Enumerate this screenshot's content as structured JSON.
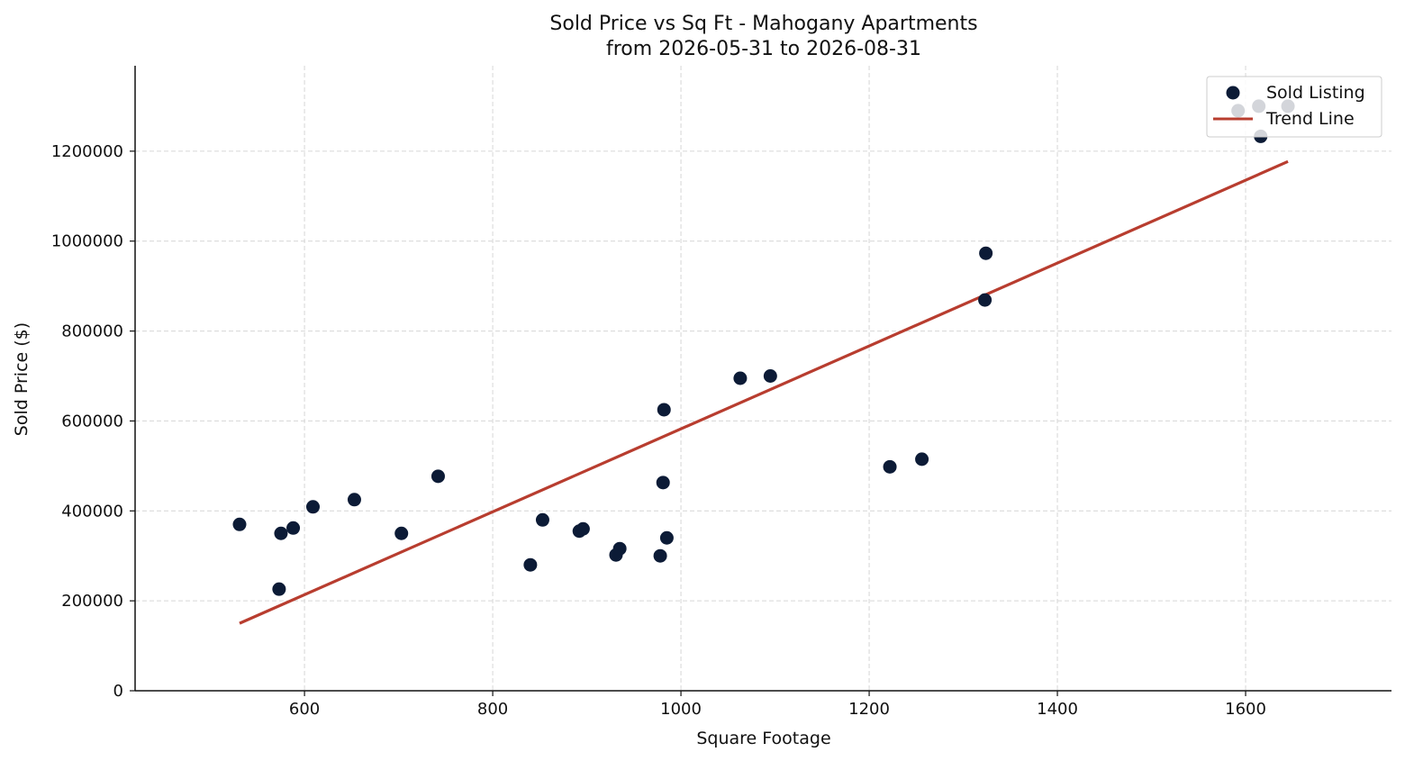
{
  "chart_data": {
    "type": "scatter",
    "title": "Sold Price vs Sq Ft - Mahogany Apartments",
    "subtitle": "from 2026-05-31 to 2026-08-31",
    "xlabel": "Square Footage",
    "ylabel": "Sold Price ($)",
    "xlim": [
      420,
      1755
    ],
    "ylim": [
      0,
      1390000
    ],
    "xticks": [
      600,
      800,
      1000,
      1200,
      1400,
      1600
    ],
    "yticks": [
      0,
      200000,
      400000,
      600000,
      800000,
      1000000,
      1200000
    ],
    "grid": true,
    "legend": "top-right",
    "colors": {
      "points": "#0c1b36",
      "trend": "#b83d2f"
    },
    "series": [
      {
        "name": "Sold Listing",
        "kind": "scatter",
        "points": [
          [
            531,
            370000
          ],
          [
            573,
            226000
          ],
          [
            575,
            350000
          ],
          [
            588,
            362000
          ],
          [
            609,
            409000
          ],
          [
            653,
            425000
          ],
          [
            703,
            350000
          ],
          [
            742,
            477000
          ],
          [
            840,
            280000
          ],
          [
            853,
            380000
          ],
          [
            892,
            355000
          ],
          [
            896,
            360000
          ],
          [
            931,
            302000
          ],
          [
            935,
            316000
          ],
          [
            978,
            300000
          ],
          [
            981,
            463000
          ],
          [
            982,
            625000
          ],
          [
            985,
            340000
          ],
          [
            1063,
            695000
          ],
          [
            1095,
            700000
          ],
          [
            1222,
            498000
          ],
          [
            1256,
            515000
          ],
          [
            1323,
            869000
          ],
          [
            1324,
            973000
          ],
          [
            1592,
            1290000
          ],
          [
            1614,
            1300000
          ],
          [
            1616,
            1233000
          ],
          [
            1645,
            1300000
          ]
        ]
      },
      {
        "name": "Trend Line",
        "kind": "line",
        "points": [
          [
            531,
            150000
          ],
          [
            1645,
            1177000
          ]
        ]
      }
    ]
  }
}
